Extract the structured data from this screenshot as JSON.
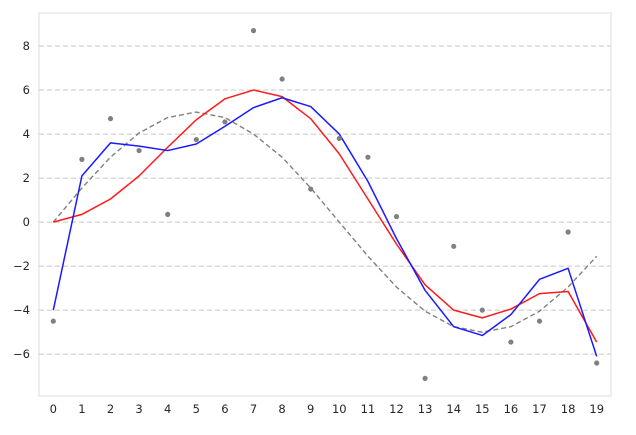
{
  "chart_data": {
    "type": "line",
    "title": "",
    "xlabel": "",
    "ylabel": "",
    "xlim": [
      -0.5,
      19.5
    ],
    "ylim": [
      -7.9,
      9.5
    ],
    "x": [
      0,
      1,
      2,
      3,
      4,
      5,
      6,
      7,
      8,
      9,
      10,
      11,
      12,
      13,
      14,
      15,
      16,
      17,
      18,
      19
    ],
    "x_ticks": [
      "0",
      "1",
      "2",
      "3",
      "4",
      "5",
      "6",
      "7",
      "8",
      "9",
      "10",
      "11",
      "12",
      "13",
      "14",
      "15",
      "16",
      "17",
      "18",
      "19"
    ],
    "y_ticks": [
      -6,
      -4,
      -2,
      0,
      2,
      4,
      6,
      8
    ],
    "y_tick_labels": [
      "−6",
      "−4",
      "−2",
      "0",
      "2",
      "4",
      "6",
      "8"
    ],
    "grid": "horizontal dashed",
    "legend": "none",
    "scatter": {
      "color": "#808080",
      "values": [
        -4.5,
        2.85,
        4.7,
        3.25,
        0.35,
        3.75,
        4.55,
        8.7,
        6.5,
        1.5,
        3.8,
        2.95,
        0.25,
        -7.1,
        -1.1,
        -4.0,
        -5.45,
        -4.5,
        -0.45,
        -6.4
      ]
    },
    "series": [
      {
        "color": "#808080",
        "style": "dashed",
        "values": [
          0.0,
          1.55,
          2.95,
          4.05,
          4.75,
          5.0,
          4.75,
          4.0,
          2.95,
          1.55,
          0.0,
          -1.55,
          -2.95,
          -4.05,
          -4.75,
          -5.0,
          -4.75,
          -4.05,
          -2.95,
          -1.55
        ]
      },
      {
        "color": "#ff1a1a",
        "style": "solid",
        "values": [
          0.0,
          0.35,
          1.05,
          2.1,
          3.4,
          4.65,
          5.6,
          6.0,
          5.7,
          4.7,
          3.1,
          1.05,
          -1.0,
          -2.85,
          -4.0,
          -4.35,
          -3.95,
          -3.25,
          -3.15,
          -5.45
        ]
      },
      {
        "color": "#1a1aff",
        "style": "solid",
        "values": [
          -4.0,
          2.1,
          3.6,
          3.45,
          3.25,
          3.55,
          4.35,
          5.2,
          5.65,
          5.25,
          4.0,
          1.85,
          -0.75,
          -3.1,
          -4.75,
          -5.15,
          -4.2,
          -2.6,
          -2.1,
          -6.1
        ]
      }
    ]
  }
}
